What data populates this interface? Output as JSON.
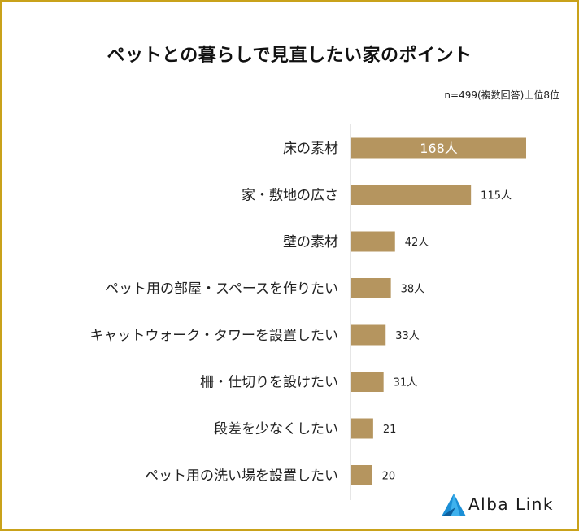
{
  "title": "ペットとの暮らしで見直したい家のポイント",
  "note": "n=499(複数回答)上位8位",
  "brand": {
    "name": "Alba Link",
    "color": "#1b8fd6"
  },
  "colors": {
    "bar": "#b5955f",
    "border": "#c9a21a",
    "axis": "#cccccc"
  },
  "chart_data": {
    "type": "bar",
    "orientation": "horizontal",
    "categories": [
      "床の素材",
      "家・敷地の広さ",
      "壁の素材",
      "ペット用の部屋・スペースを作りたい",
      "キャットウォーク・タワーを設置したい",
      "柵・仕切りを設けたい",
      "段差を少なくしたい",
      "ペット用の洗い場を設置したい"
    ],
    "values": [
      168,
      115,
      42,
      38,
      33,
      31,
      21,
      20
    ],
    "data_labels": [
      "168人",
      "115人",
      "42人",
      "38人",
      "33人",
      "31人",
      "21",
      "20"
    ],
    "xlim": [
      0,
      168
    ],
    "grid": false
  }
}
